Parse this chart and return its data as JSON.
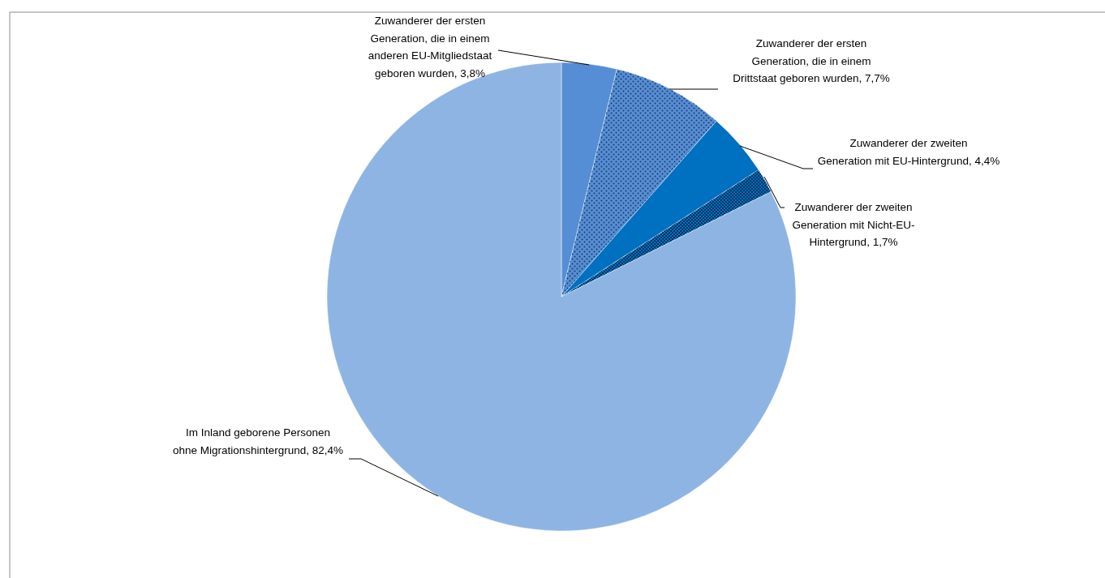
{
  "chart_data": {
    "type": "pie",
    "categories": [
      "Zuwanderer der ersten Generation, die in einem anderen EU-Mitgliedstaat geboren wurden",
      "Zuwanderer der ersten Generation, die in einem Drittstaat geboren wurden",
      "Zuwanderer der zweiten Generation mit EU-Hintergrund",
      "Zuwanderer der zweiten Generation mit Nicht-EU-Hintergrund",
      "Im Inland geborene Personen ohne Migrationshintergrund"
    ],
    "values": [
      3.8,
      7.7,
      4.4,
      1.7,
      82.4
    ],
    "value_labels": [
      "3,8%",
      "7,7%",
      "4,4%",
      "1,7%",
      "82,4%"
    ],
    "colors": [
      "#558ed5",
      "#558ed5",
      "#0070c0",
      "#0070c0",
      "#8eb4e3"
    ]
  }
}
